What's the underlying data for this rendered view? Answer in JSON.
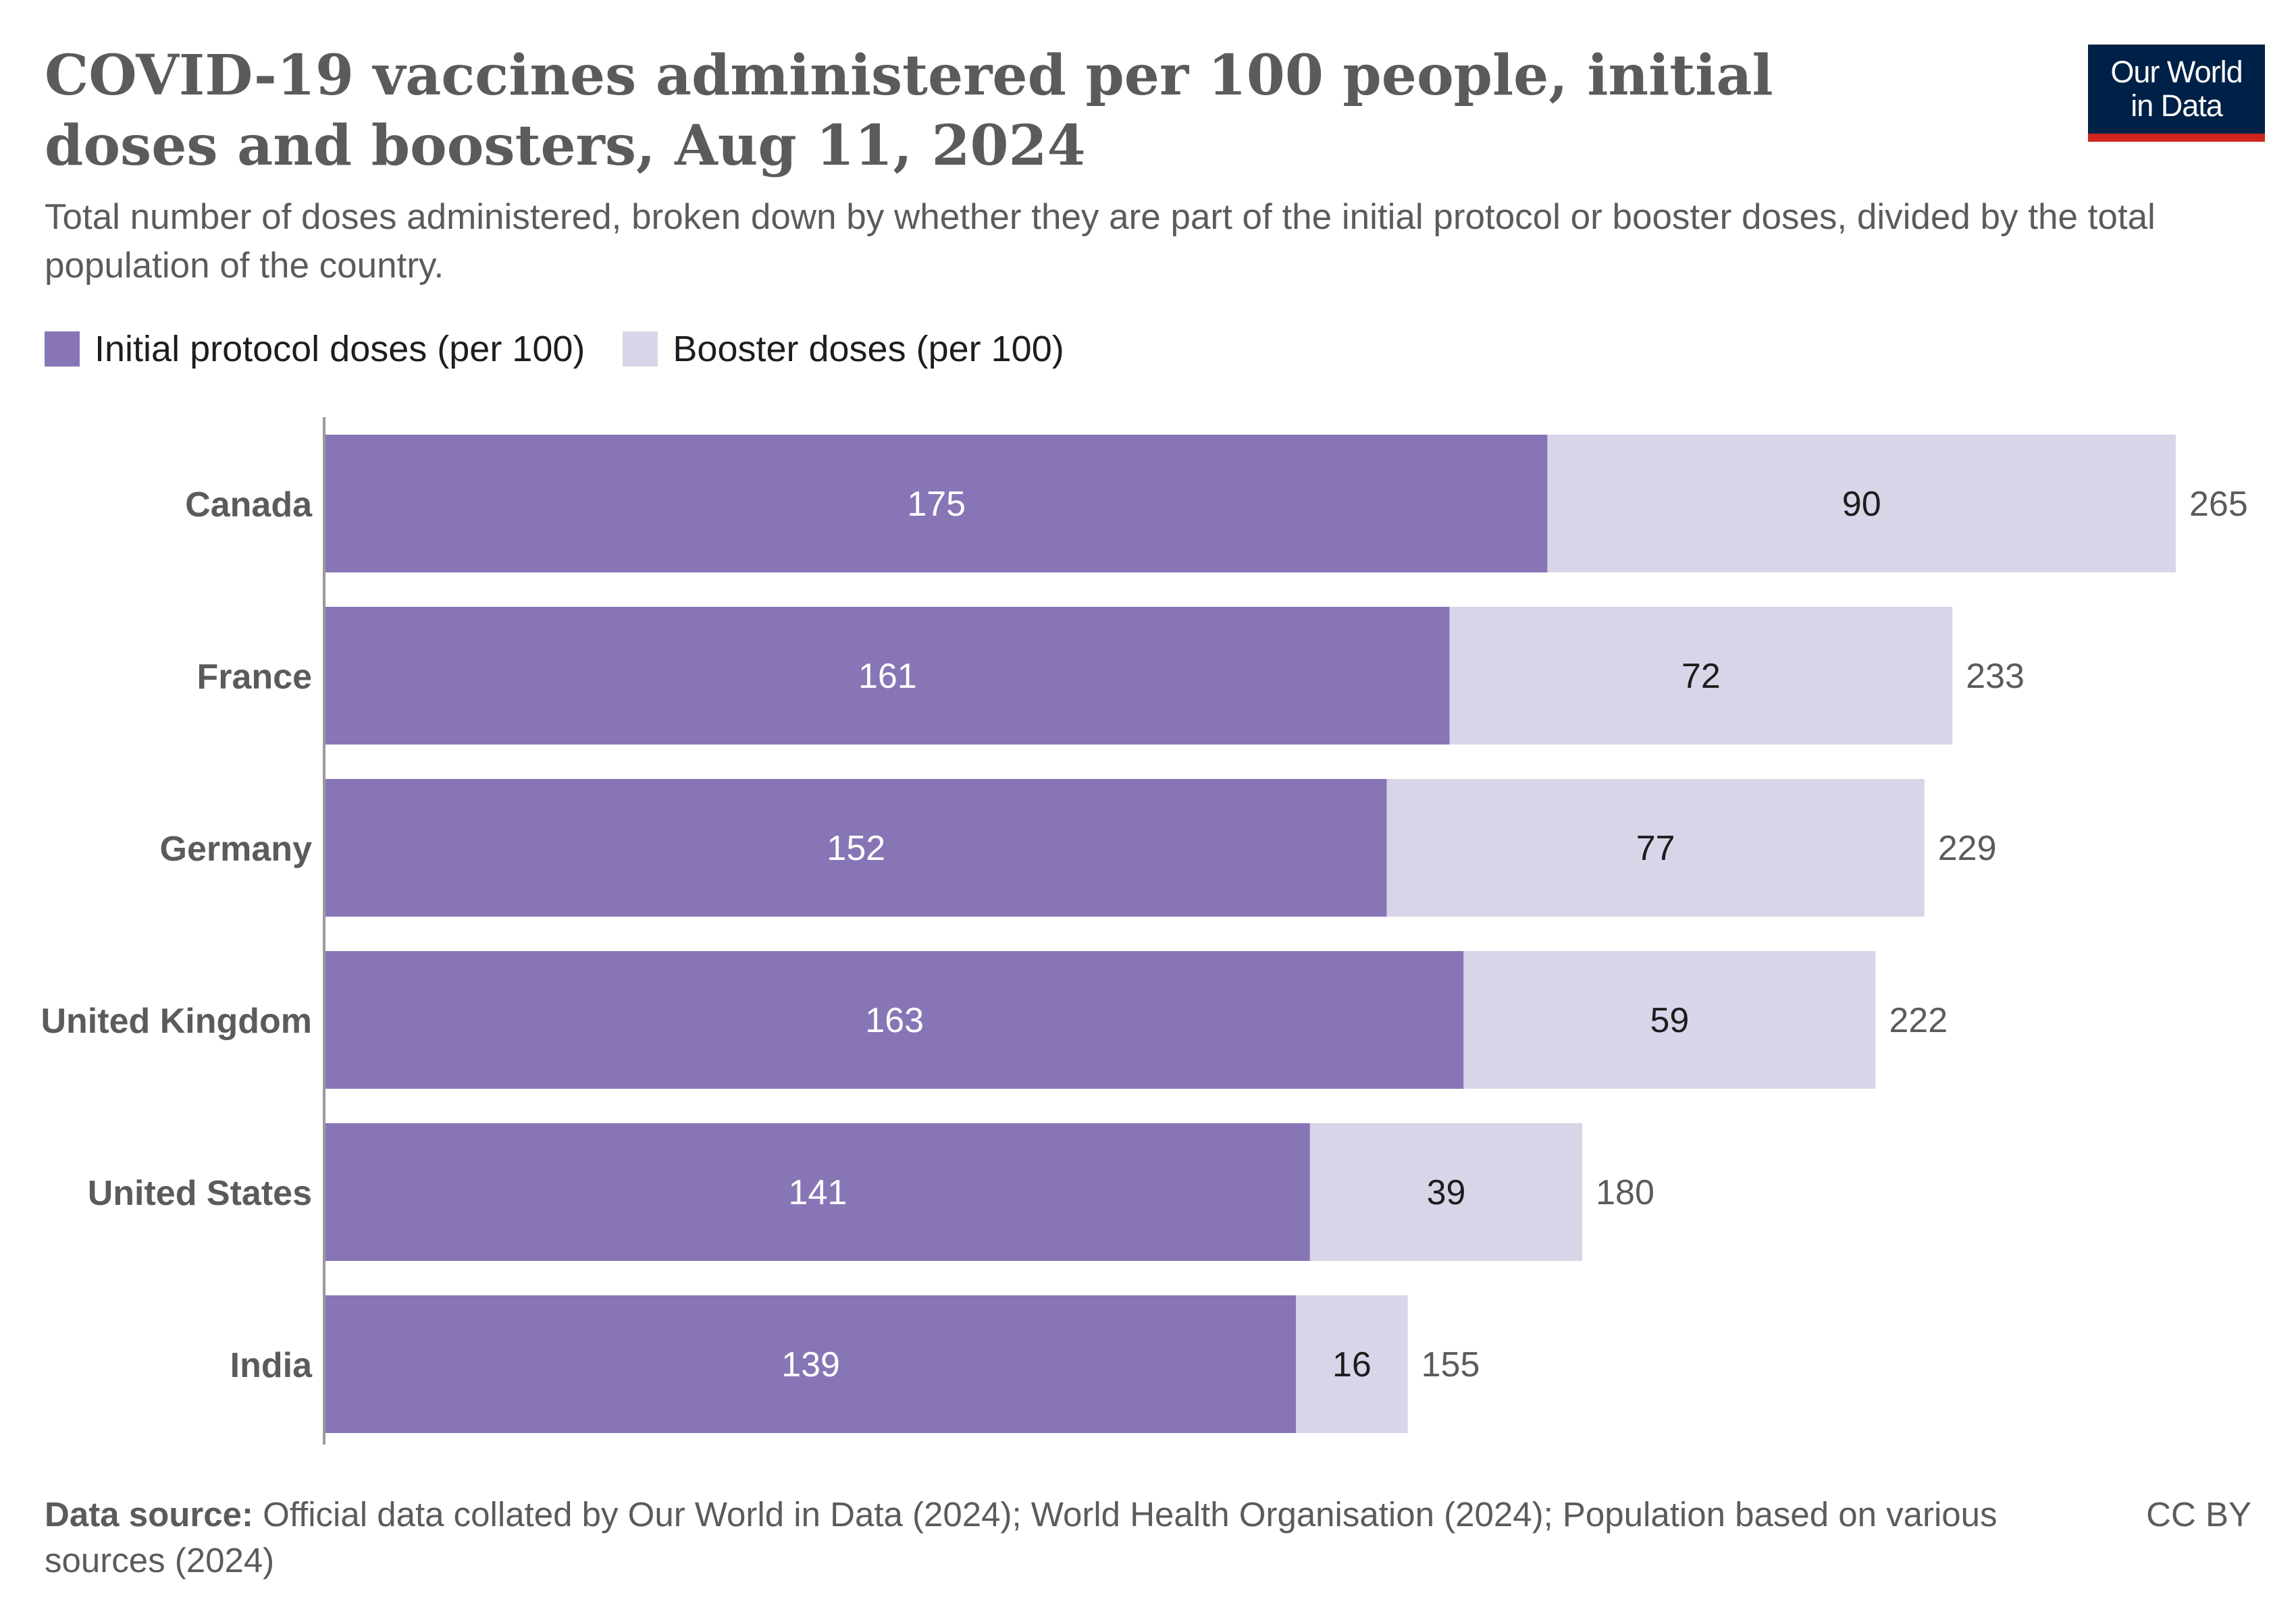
{
  "header": {
    "title": "COVID-19 vaccines administered per 100 people, initial doses and boosters, Aug 11, 2024",
    "subtitle": "Total number of doses administered, broken down by whether they are part of the initial protocol or booster doses, divided by the total population of the country.",
    "logo_line1": "Our World",
    "logo_line2": "in Data"
  },
  "footer": {
    "source_label": "Data source:",
    "source_text": "Official data collated by Our World in Data (2024); World Health Organisation (2024); Population based on various sources (2024)",
    "license": "CC BY"
  },
  "colors": {
    "initial": "#8875b5",
    "booster": "#d8d5e9",
    "logo_bg": "#002147",
    "logo_accent": "#ce261e"
  },
  "chart_data": {
    "type": "bar",
    "orientation": "horizontal",
    "stacked": true,
    "categories": [
      "Canada",
      "France",
      "Germany",
      "United Kingdom",
      "United States",
      "India"
    ],
    "series": [
      {
        "name": "Initial protocol doses (per 100)",
        "values": [
          175,
          161,
          152,
          163,
          141,
          139
        ]
      },
      {
        "name": "Booster doses (per 100)",
        "values": [
          90,
          72,
          77,
          59,
          39,
          16
        ]
      }
    ],
    "totals": [
      265,
      233,
      229,
      222,
      180,
      155
    ],
    "legend_position": "top-left",
    "grid": false,
    "xlim": [
      0,
      265
    ]
  }
}
